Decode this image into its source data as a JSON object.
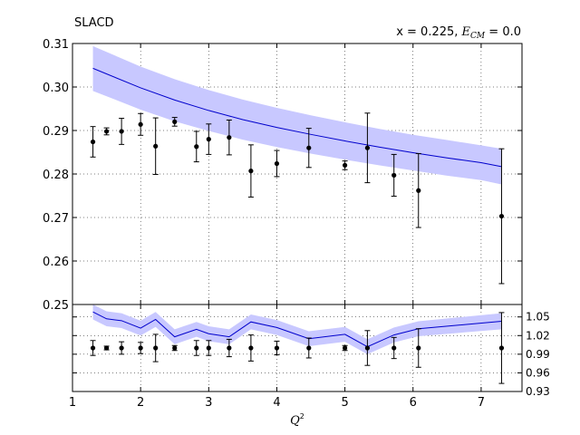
{
  "chart_data": [
    {
      "panel": "main",
      "type": "line",
      "title_left": "SLACD",
      "title_right_prefix": "x = 0.225, ",
      "title_right_var": "E",
      "title_right_sub": "CM",
      "title_right_suffix": " = 0.0",
      "xlim": [
        1,
        7.6
      ],
      "ylim": [
        0.25,
        0.31
      ],
      "xticks": [
        1,
        2,
        3,
        4,
        5,
        6,
        7
      ],
      "yticks": [
        0.25,
        0.26,
        0.27,
        0.28,
        0.29,
        0.3,
        0.31
      ],
      "ytick_labels": [
        "0.25",
        "0.26",
        "0.27",
        "0.28",
        "0.29",
        "0.30",
        "0.31"
      ],
      "grid": true,
      "theory": {
        "color": "#0000cc",
        "band_color": "#c8c8ff",
        "x": [
          1.3,
          2.0,
          2.5,
          3.0,
          3.5,
          4.0,
          4.5,
          5.0,
          5.5,
          6.0,
          6.5,
          7.0,
          7.3
        ],
        "y": [
          0.3043,
          0.2998,
          0.297,
          0.2946,
          0.2925,
          0.2907,
          0.2891,
          0.2876,
          0.2862,
          0.2849,
          0.2837,
          0.2826,
          0.2817
        ],
        "lower": [
          0.2991,
          0.2948,
          0.2921,
          0.2899,
          0.2879,
          0.2862,
          0.2847,
          0.2833,
          0.282,
          0.2808,
          0.2796,
          0.2786,
          0.2776
        ],
        "upper": [
          0.3094,
          0.3047,
          0.3018,
          0.2993,
          0.2971,
          0.2952,
          0.2935,
          0.2919,
          0.2904,
          0.289,
          0.2878,
          0.2866,
          0.2858
        ]
      },
      "data_points": {
        "x": [
          1.3,
          1.5,
          1.72,
          2.0,
          2.22,
          2.5,
          2.82,
          3.0,
          3.3,
          3.62,
          4.0,
          4.47,
          5.0,
          5.33,
          5.72,
          6.08,
          7.3
        ],
        "y": [
          0.2874,
          0.2898,
          0.2898,
          0.2914,
          0.2864,
          0.292,
          0.2863,
          0.288,
          0.2884,
          0.2807,
          0.2824,
          0.286,
          0.282,
          0.286,
          0.2797,
          0.2762,
          0.2703
        ],
        "err": [
          0.0035,
          0.0008,
          0.003,
          0.0025,
          0.0065,
          0.001,
          0.0035,
          0.0035,
          0.004,
          0.006,
          0.003,
          0.0045,
          0.001,
          0.008,
          0.0048,
          0.0085,
          0.0155
        ]
      }
    },
    {
      "panel": "ratio",
      "type": "line",
      "xlabel_var": "Q",
      "xlabel_sup": "2",
      "xlim": [
        1,
        7.6
      ],
      "ylim": [
        0.93,
        1.07
      ],
      "yticks_right": [
        0.93,
        0.96,
        0.99,
        1.02,
        1.05
      ],
      "ytick_labels": [
        "0.93",
        "0.96",
        "0.99",
        "1.02",
        "1.05"
      ],
      "xtick_labels": [
        "1",
        "2",
        "3",
        "4",
        "5",
        "6",
        "7"
      ],
      "grid": true,
      "theory": {
        "x": [
          1.3,
          1.5,
          1.72,
          2.0,
          2.22,
          2.5,
          2.82,
          3.0,
          3.3,
          3.62,
          4.0,
          4.47,
          5.0,
          5.33,
          5.72,
          6.08,
          7.3
        ],
        "y": [
          1.058,
          1.047,
          1.044,
          1.032,
          1.046,
          1.018,
          1.03,
          1.023,
          1.018,
          1.042,
          1.033,
          1.015,
          1.022,
          1.002,
          1.021,
          1.031,
          1.043
        ],
        "lower": [
          1.046,
          1.035,
          1.032,
          1.02,
          1.034,
          1.006,
          1.018,
          1.011,
          1.006,
          1.03,
          1.021,
          1.003,
          1.01,
          0.99,
          1.009,
          1.019,
          1.03
        ],
        "upper": [
          1.07,
          1.059,
          1.056,
          1.044,
          1.058,
          1.03,
          1.042,
          1.035,
          1.03,
          1.054,
          1.045,
          1.027,
          1.034,
          1.014,
          1.033,
          1.043,
          1.056
        ]
      },
      "data_points": {
        "x": [
          1.3,
          1.5,
          1.72,
          2.0,
          2.22,
          2.5,
          2.82,
          3.0,
          3.3,
          3.62,
          4.0,
          4.47,
          5.0,
          5.33,
          5.72,
          6.08,
          7.3
        ],
        "y": [
          1.0,
          1.0,
          1.0,
          1.0,
          1.0,
          1.0,
          1.0,
          1.0,
          1.0,
          1.0,
          1.0,
          1.0,
          1.0,
          1.0,
          1.0,
          1.0,
          1.0
        ],
        "err": [
          0.012,
          0.003,
          0.01,
          0.009,
          0.022,
          0.004,
          0.012,
          0.012,
          0.014,
          0.021,
          0.011,
          0.016,
          0.004,
          0.028,
          0.017,
          0.031,
          0.057
        ]
      }
    }
  ]
}
